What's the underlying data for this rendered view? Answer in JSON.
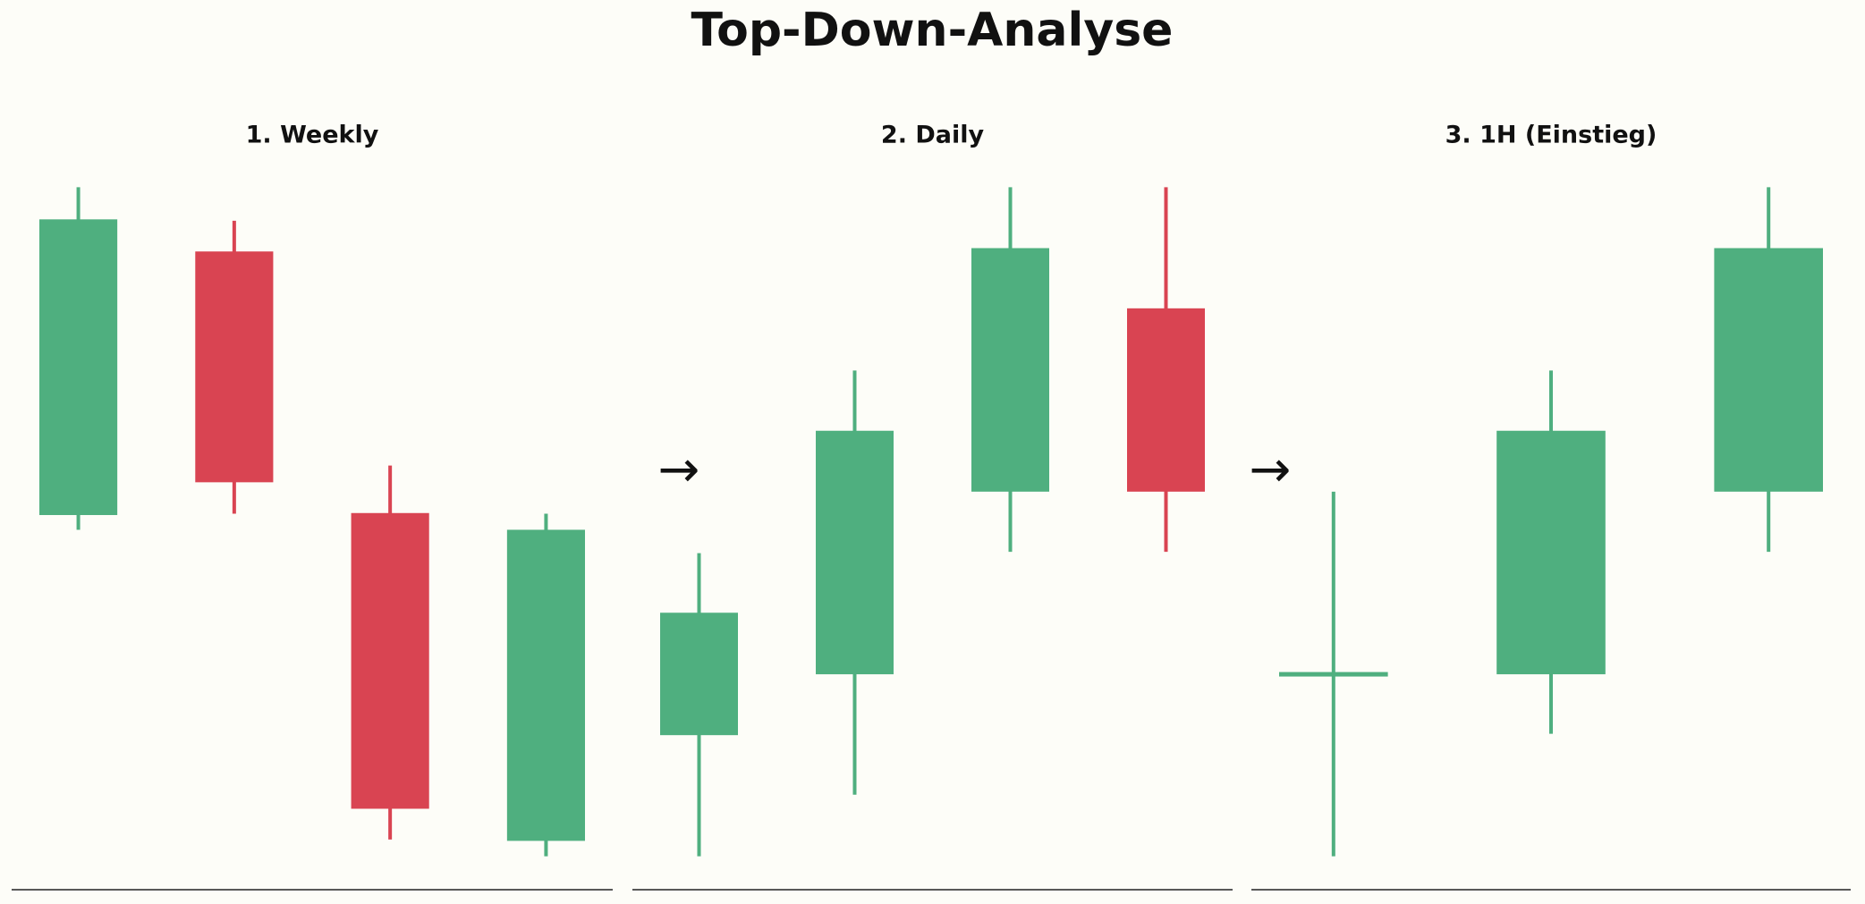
{
  "title": "Top-Down-Analyse",
  "arrow": "→",
  "chart_data": [
    {
      "type": "candlestick",
      "title": "1. Weekly",
      "up_color": "#4faf7f",
      "down_color": "#d94452",
      "ylim": [
        -5,
        105
      ],
      "open": [
        51.0,
        90.4,
        51.3,
        2.3
      ],
      "high": [
        100,
        95.0,
        58.4,
        51.2
      ],
      "low": [
        48.8,
        51.2,
        2.5,
        0
      ],
      "close": [
        95.2,
        55.9,
        7.1,
        48.8
      ]
    },
    {
      "type": "candlestick",
      "title": "2. Daily",
      "up_color": "#4faf7f",
      "down_color": "#d94452",
      "ylim": [
        -5,
        105
      ],
      "open": [
        18.1,
        27.2,
        54.5,
        81.9
      ],
      "high": [
        45.3,
        72.6,
        100,
        100
      ],
      "low": [
        0,
        9.2,
        45.5,
        45.5
      ],
      "close": [
        36.4,
        63.6,
        90.9,
        54.5
      ]
    },
    {
      "type": "candlestick",
      "title": "3. 1H (Einstieg)",
      "up_color": "#4faf7f",
      "down_color": "#d94452",
      "ylim": [
        -5,
        105
      ],
      "open": [
        27.2,
        27.2,
        54.5
      ],
      "high": [
        54.5,
        72.6,
        100
      ],
      "low": [
        0,
        18.3,
        45.5
      ],
      "close": [
        27.2,
        63.6,
        90.9
      ]
    }
  ]
}
